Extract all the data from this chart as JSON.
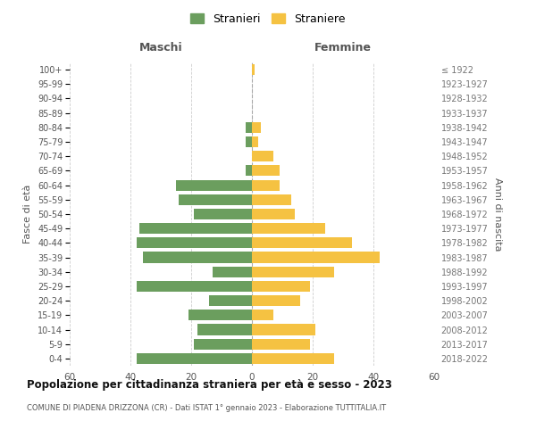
{
  "age_groups": [
    "0-4",
    "5-9",
    "10-14",
    "15-19",
    "20-24",
    "25-29",
    "30-34",
    "35-39",
    "40-44",
    "45-49",
    "50-54",
    "55-59",
    "60-64",
    "65-69",
    "70-74",
    "75-79",
    "80-84",
    "85-89",
    "90-94",
    "95-99",
    "100+"
  ],
  "birth_years": [
    "2018-2022",
    "2013-2017",
    "2008-2012",
    "2003-2007",
    "1998-2002",
    "1993-1997",
    "1988-1992",
    "1983-1987",
    "1978-1982",
    "1973-1977",
    "1968-1972",
    "1963-1967",
    "1958-1962",
    "1953-1957",
    "1948-1952",
    "1943-1947",
    "1938-1942",
    "1933-1937",
    "1928-1932",
    "1923-1927",
    "≤ 1922"
  ],
  "maschi": [
    38,
    19,
    18,
    21,
    14,
    38,
    13,
    36,
    38,
    37,
    19,
    24,
    25,
    2,
    0,
    2,
    2,
    0,
    0,
    0,
    0
  ],
  "femmine": [
    27,
    19,
    21,
    7,
    16,
    19,
    27,
    42,
    33,
    24,
    14,
    13,
    9,
    9,
    7,
    2,
    3,
    0,
    0,
    0,
    1
  ],
  "maschi_color": "#6b9e5e",
  "femmine_color": "#f5c242",
  "background_color": "#ffffff",
  "grid_color": "#cccccc",
  "title": "Popolazione per cittadinanza straniera per età e sesso - 2023",
  "subtitle": "COMUNE DI PIADENA DRIZZONA (CR) - Dati ISTAT 1° gennaio 2023 - Elaborazione TUTTITALIA.IT",
  "xlabel_left": "Maschi",
  "xlabel_right": "Femmine",
  "ylabel_left": "Fasce di età",
  "ylabel_right": "Anni di nascita",
  "legend_stranieri": "Stranieri",
  "legend_straniere": "Straniere",
  "xlim": 60,
  "bar_height": 0.75
}
